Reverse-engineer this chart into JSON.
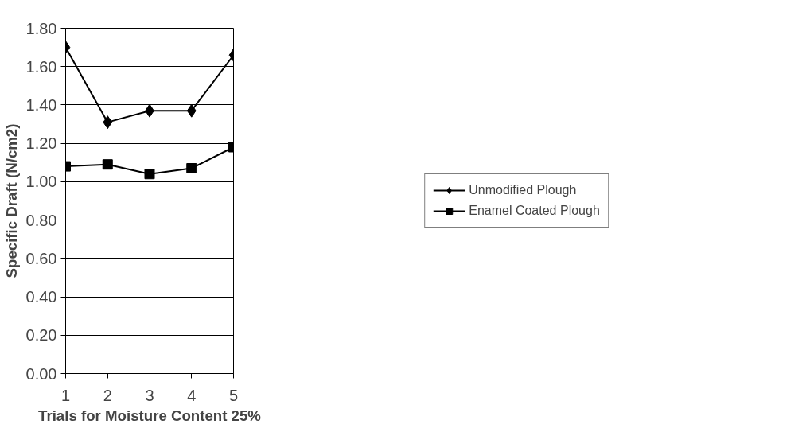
{
  "chart_data": {
    "type": "line",
    "xlabel": "Trials for Moisture Content 25%",
    "ylabel": "Specific Draft (N/cm2)",
    "categories": [
      "1",
      "2",
      "3",
      "4",
      "5"
    ],
    "series": [
      {
        "name": "Unmodified Plough",
        "color": "#000000",
        "marker": "diamond",
        "values": [
          1.7,
          1.31,
          1.37,
          1.37,
          1.66
        ]
      },
      {
        "name": "Enamel Coated Plough",
        "color": "#000000",
        "marker": "square",
        "values": [
          1.08,
          1.09,
          1.04,
          1.07,
          1.18
        ]
      }
    ],
    "ylim": [
      0,
      1.8
    ],
    "yticks": [
      {
        "value": 0,
        "label": "0.00"
      },
      {
        "value": 0.2,
        "label": "0.20"
      },
      {
        "value": 0.4,
        "label": "0.40"
      },
      {
        "value": 0.6,
        "label": "0.60"
      },
      {
        "value": 0.8,
        "label": "0.80"
      },
      {
        "value": 1.0,
        "label": "1.00"
      },
      {
        "value": 1.2,
        "label": "1.20"
      },
      {
        "value": 1.4,
        "label": "1.40"
      },
      {
        "value": 1.6,
        "label": "1.60"
      },
      {
        "value": 1.8,
        "label": "1.80"
      }
    ],
    "grid": "y",
    "legend": "right",
    "line_style": "solid"
  }
}
